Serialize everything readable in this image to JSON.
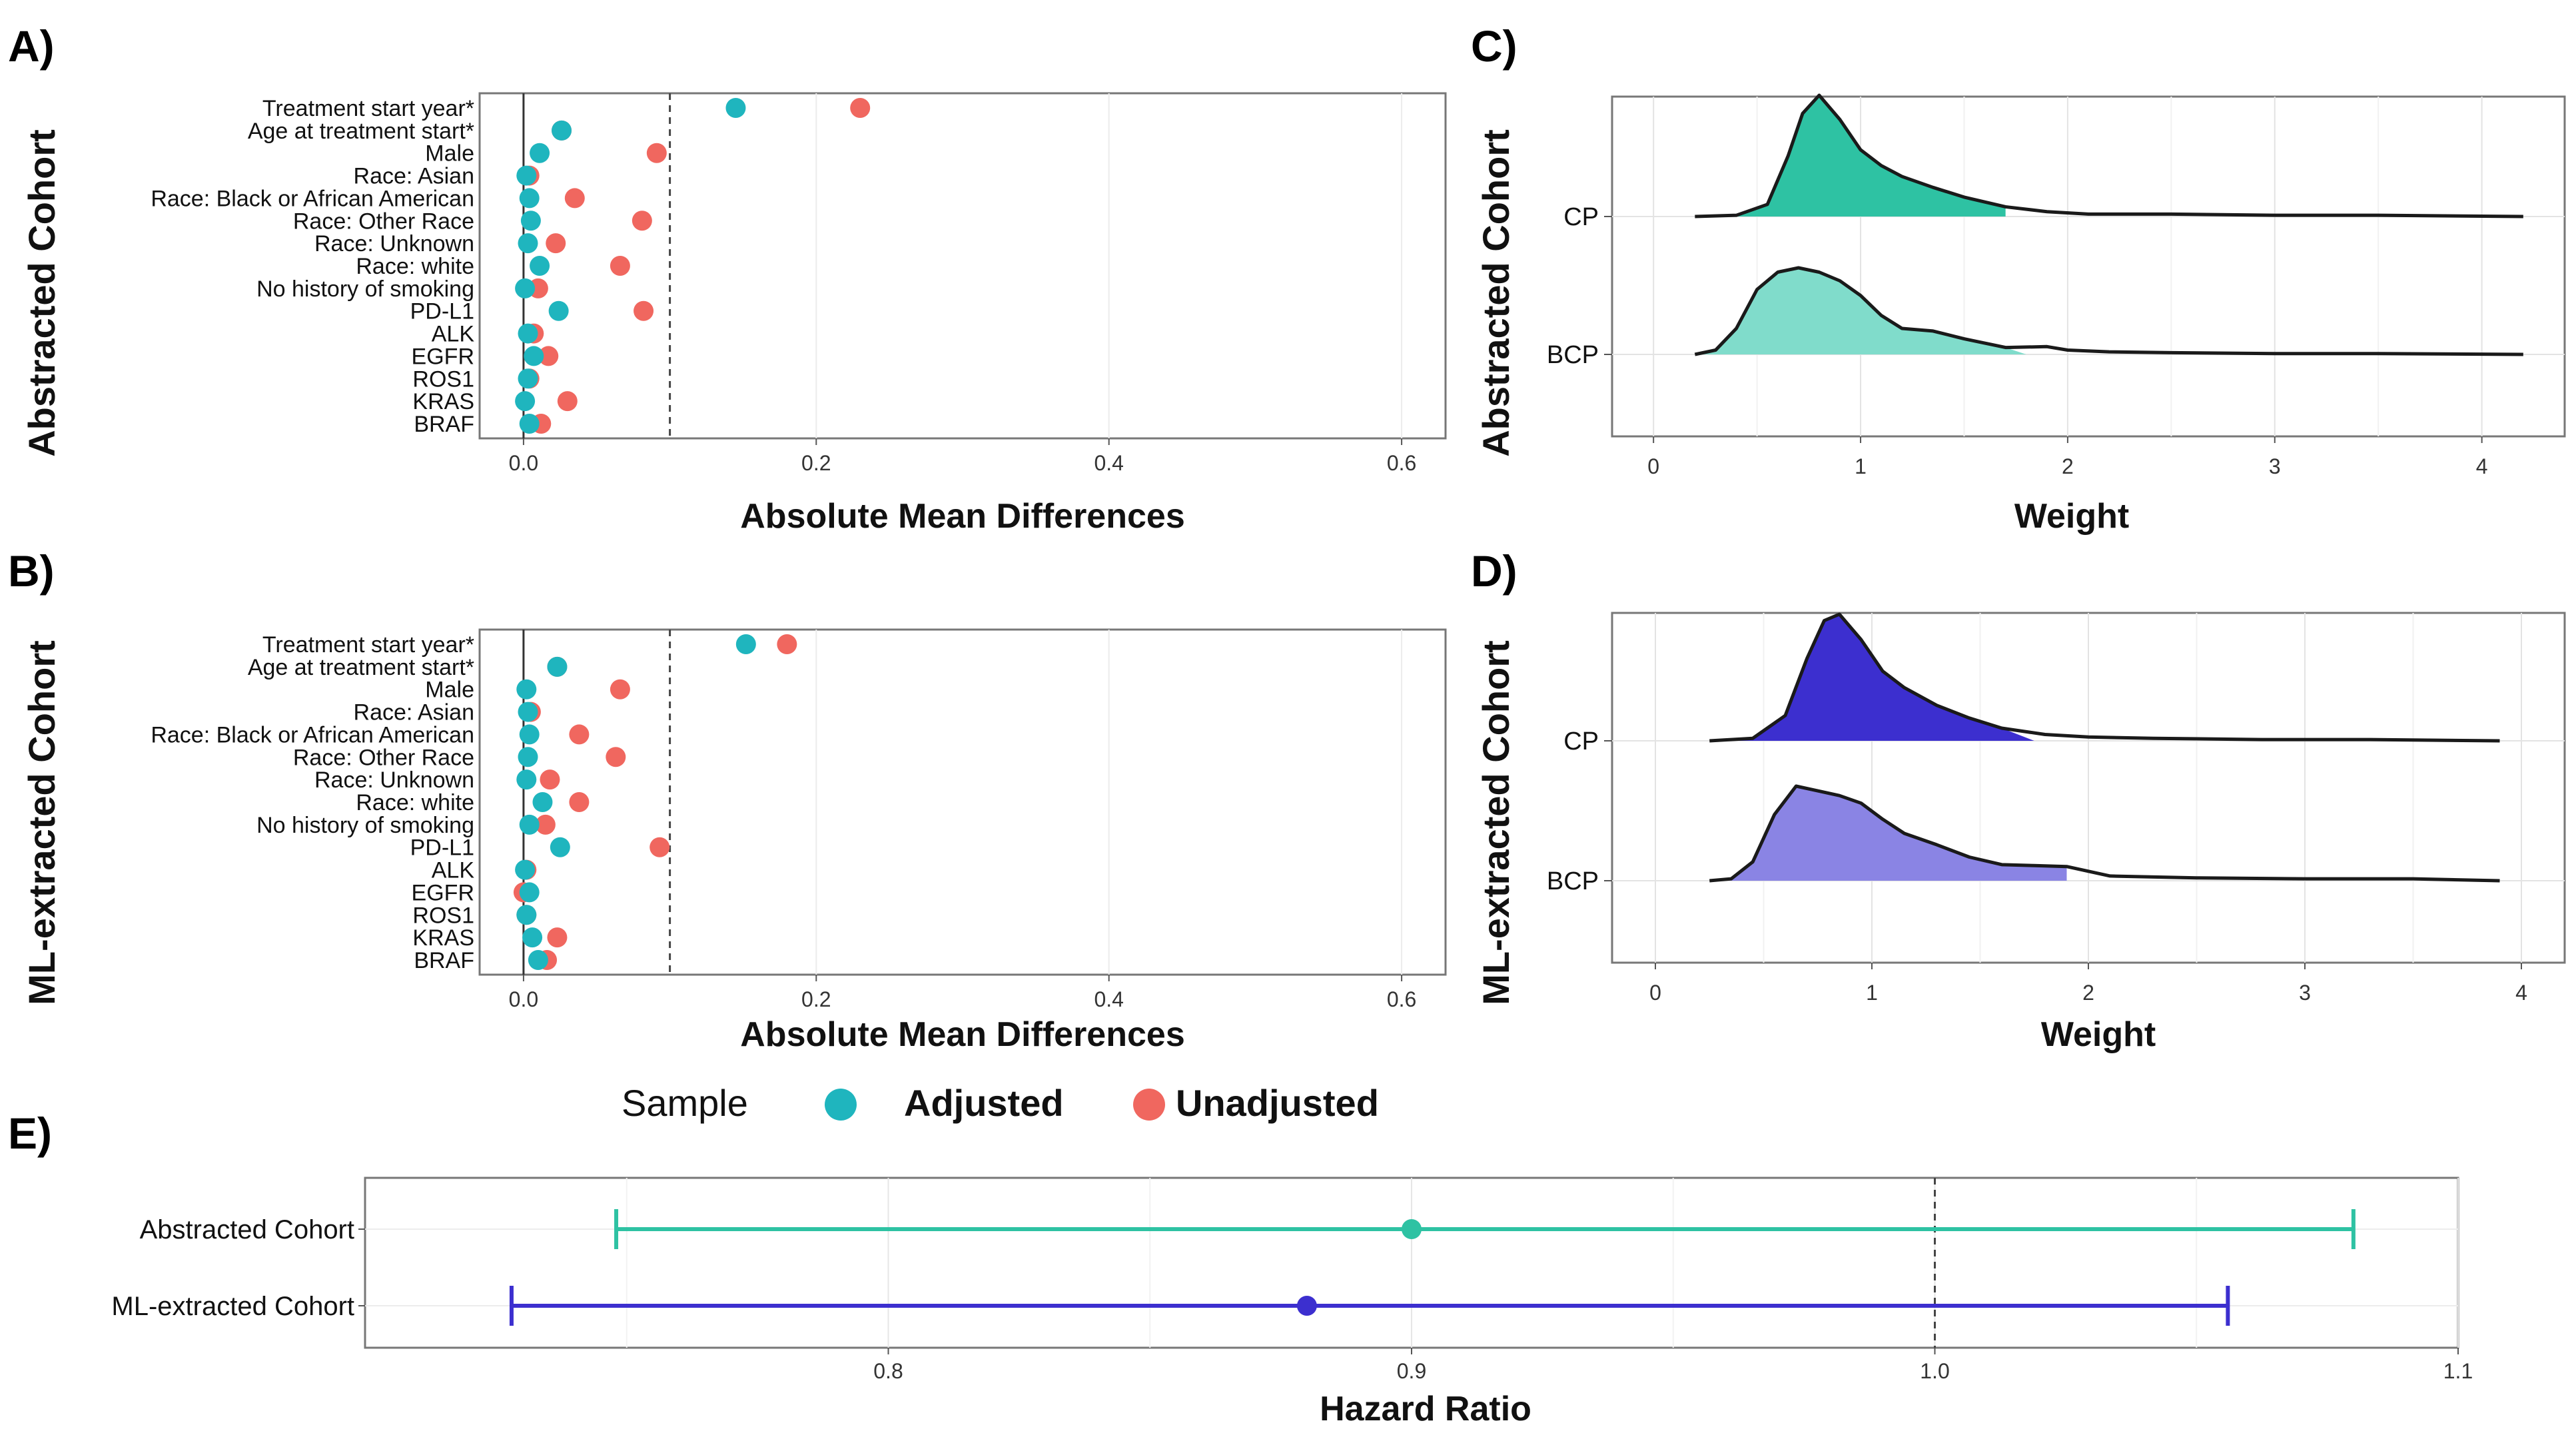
{
  "panels": {
    "A": "A)",
    "B": "B)",
    "C": "C)",
    "D": "D)",
    "E": "E)"
  },
  "legend": {
    "title": "Sample",
    "adjusted": "Adjusted",
    "unadjusted": "Unadjusted",
    "adjusted_color": "#1fb5be",
    "unadjusted_color": "#f0675f"
  },
  "chart_data": [
    {
      "id": "A",
      "type": "scatter",
      "cohort": "Abstracted Cohort",
      "xlabel": "Absolute Mean Differences",
      "xlim": [
        -0.03,
        0.63
      ],
      "xticks": [
        "0.0",
        "0.2",
        "0.4",
        "0.6"
      ],
      "threshold": 0.1,
      "categories": [
        "Treatment start year*",
        "Age at treatment start*",
        "Male",
        "Race: Asian",
        "Race: Black or African American",
        "Race: Other Race",
        "Race: Unknown",
        "Race: white",
        "No history of smoking",
        "PD-L1",
        "ALK",
        "EGFR",
        "ROS1",
        "KRAS",
        "BRAF"
      ],
      "series": [
        {
          "name": "Adjusted",
          "color": "#1fb5be",
          "values": [
            0.145,
            0.026,
            0.011,
            0.002,
            0.004,
            0.005,
            0.003,
            0.011,
            0.001,
            0.024,
            0.003,
            0.007,
            0.003,
            0.001,
            0.004
          ]
        },
        {
          "name": "Unadjusted",
          "color": "#f0675f",
          "values": [
            0.23,
            0.026,
            0.091,
            0.004,
            0.035,
            0.081,
            0.022,
            0.066,
            0.01,
            0.082,
            0.007,
            0.017,
            0.004,
            0.03,
            0.012
          ]
        }
      ]
    },
    {
      "id": "B",
      "type": "scatter",
      "cohort": "ML-extracted Cohort",
      "xlabel": "Absolute Mean Differences",
      "xlim": [
        -0.03,
        0.63
      ],
      "xticks": [
        "0.0",
        "0.2",
        "0.4",
        "0.6"
      ],
      "threshold": 0.1,
      "categories": [
        "Treatment start year*",
        "Age at treatment start*",
        "Male",
        "Race: Asian",
        "Race: Black or African American",
        "Race: Other Race",
        "Race: Unknown",
        "Race: white",
        "No history of smoking",
        "PD-L1",
        "ALK",
        "EGFR",
        "ROS1",
        "KRAS",
        "BRAF"
      ],
      "series": [
        {
          "name": "Adjusted",
          "color": "#1fb5be",
          "values": [
            0.152,
            0.023,
            0.002,
            0.003,
            0.004,
            0.003,
            0.002,
            0.013,
            0.004,
            0.025,
            0.001,
            0.004,
            0.002,
            0.006,
            0.01
          ]
        },
        {
          "name": "Unadjusted",
          "color": "#f0675f",
          "values": [
            0.18,
            0.023,
            0.066,
            0.005,
            0.038,
            0.063,
            0.018,
            0.038,
            0.015,
            0.093,
            0.002,
            0.0,
            0.002,
            0.023,
            0.016
          ]
        }
      ]
    },
    {
      "id": "C",
      "type": "area",
      "cohort": "Abstracted Cohort",
      "xlabel": "Weight",
      "xlim": [
        -0.2,
        4.4
      ],
      "xticks": [
        "0",
        "1",
        "2",
        "3",
        "4"
      ],
      "ridges": [
        {
          "name": "CP",
          "color": "#2ec2a3",
          "fill_to": 1.7,
          "x": [
            0.2,
            0.4,
            0.55,
            0.65,
            0.72,
            0.8,
            0.9,
            1.0,
            1.1,
            1.2,
            1.35,
            1.5,
            1.7,
            1.9,
            2.1,
            2.5,
            3.0,
            3.5,
            4.2
          ],
          "y": [
            0.0,
            0.01,
            0.1,
            0.5,
            0.85,
            1.0,
            0.8,
            0.55,
            0.42,
            0.33,
            0.24,
            0.16,
            0.08,
            0.04,
            0.02,
            0.02,
            0.01,
            0.01,
            0.0
          ]
        },
        {
          "name": "BCP",
          "color": "#80dccb",
          "fill_to": 1.8,
          "x": [
            0.2,
            0.3,
            0.4,
            0.5,
            0.6,
            0.7,
            0.8,
            0.9,
            1.0,
            1.1,
            1.2,
            1.35,
            1.5,
            1.7,
            1.9,
            2.0,
            2.2,
            2.5,
            3.0,
            3.5,
            4.2
          ],
          "y": [
            0.0,
            0.05,
            0.3,
            0.75,
            0.95,
            1.0,
            0.95,
            0.85,
            0.68,
            0.45,
            0.3,
            0.27,
            0.18,
            0.08,
            0.09,
            0.05,
            0.03,
            0.02,
            0.01,
            0.01,
            0.0
          ]
        }
      ]
    },
    {
      "id": "D",
      "type": "area",
      "cohort": "ML-extracted Cohort",
      "xlabel": "Weight",
      "xlim": [
        -0.2,
        4.2
      ],
      "xticks": [
        "0",
        "1",
        "2",
        "3",
        "4"
      ],
      "ridges": [
        {
          "name": "CP",
          "color": "#3c2fcf",
          "fill_to": 1.75,
          "x": [
            0.25,
            0.45,
            0.6,
            0.7,
            0.78,
            0.85,
            0.95,
            1.05,
            1.15,
            1.3,
            1.45,
            1.6,
            1.8,
            2.0,
            2.3,
            2.8,
            3.3,
            3.9
          ],
          "y": [
            0.0,
            0.02,
            0.2,
            0.65,
            0.95,
            1.0,
            0.8,
            0.55,
            0.42,
            0.28,
            0.18,
            0.1,
            0.05,
            0.03,
            0.02,
            0.01,
            0.01,
            0.0
          ]
        },
        {
          "name": "BCP",
          "color": "#8a84e4",
          "fill_to": 1.9,
          "x": [
            0.25,
            0.35,
            0.45,
            0.55,
            0.65,
            0.75,
            0.85,
            0.95,
            1.05,
            1.15,
            1.3,
            1.45,
            1.6,
            1.75,
            1.9,
            2.1,
            2.5,
            3.0,
            3.5,
            3.9
          ],
          "y": [
            0.0,
            0.02,
            0.2,
            0.7,
            1.0,
            0.95,
            0.9,
            0.82,
            0.65,
            0.5,
            0.38,
            0.25,
            0.17,
            0.16,
            0.15,
            0.05,
            0.03,
            0.02,
            0.02,
            0.0
          ]
        }
      ]
    },
    {
      "id": "E",
      "type": "scatter",
      "subtype": "forest",
      "xlabel": "Hazard Ratio",
      "xlim": [
        0.7,
        1.1
      ],
      "xticks": [
        "0.8",
        "0.9",
        "1.0",
        "1.1"
      ],
      "reference": 1.0,
      "rows": [
        {
          "label": "Abstracted Cohort",
          "hr": 0.9,
          "lower": 0.748,
          "upper": 1.08,
          "color": "#2ec2a3"
        },
        {
          "label": "ML-extracted Cohort",
          "hr": 0.88,
          "lower": 0.728,
          "upper": 1.056,
          "color": "#3c2fcf"
        }
      ]
    }
  ]
}
